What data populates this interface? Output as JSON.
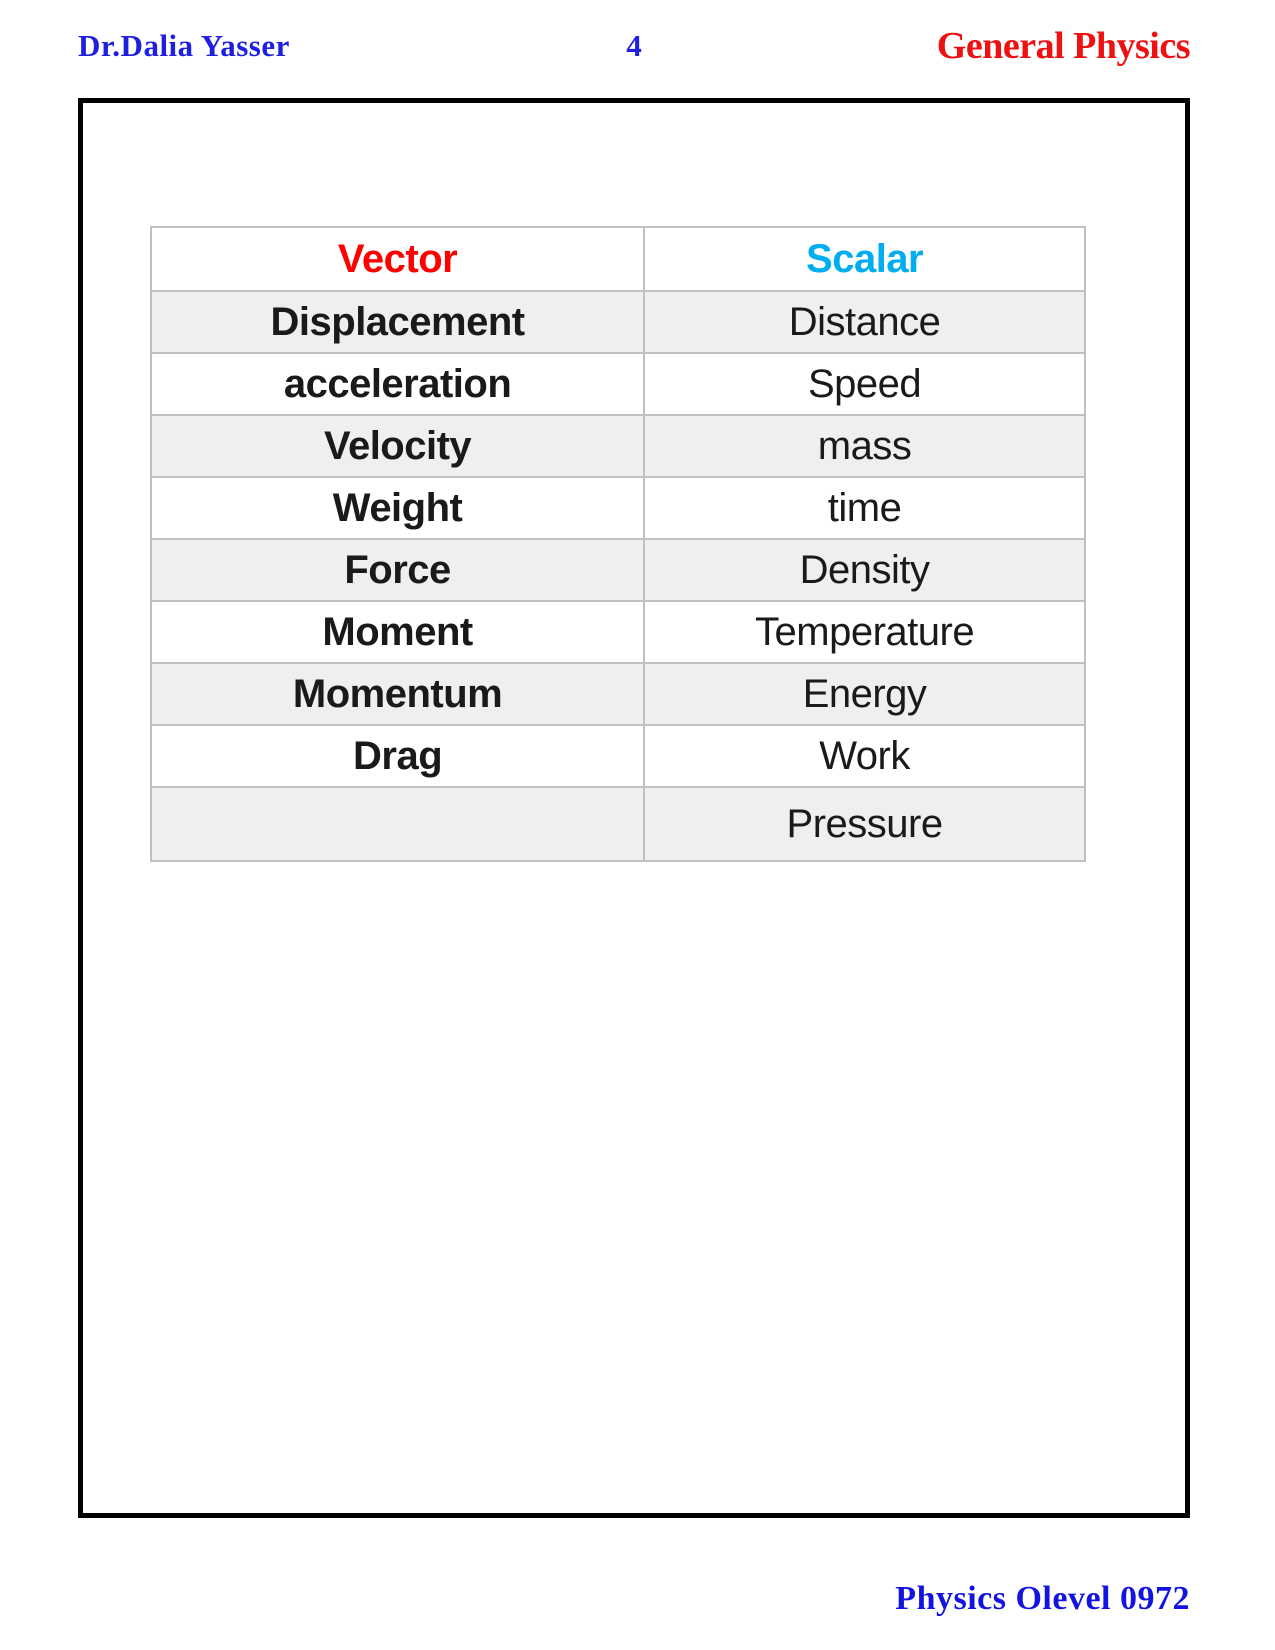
{
  "header": {
    "author": "Dr.Dalia Yasser",
    "page_number": "4",
    "title": "General Physics"
  },
  "footer": {
    "text": "Physics Olevel 0972"
  },
  "colors": {
    "header_blue": "#1f1fe0",
    "title_red": "#ee1111",
    "vector_red": "#ff0000",
    "scalar_cyan": "#00aeef",
    "stripe_gray": "#efefef",
    "table_border_gray": "#bfbfbf",
    "box_border_black": "#000000"
  },
  "table": {
    "header": {
      "vector_label": "Vector",
      "scalar_label": "Scalar"
    },
    "rows": [
      {
        "vector": "Displacement",
        "scalar": "Distance"
      },
      {
        "vector": "acceleration",
        "scalar": "Speed"
      },
      {
        "vector": "Velocity",
        "scalar": "mass"
      },
      {
        "vector": "Weight",
        "scalar": "time"
      },
      {
        "vector": "Force",
        "scalar": "Density"
      },
      {
        "vector": "Moment",
        "scalar": "Temperature"
      },
      {
        "vector": "Momentum",
        "scalar": "Energy"
      },
      {
        "vector": "Drag",
        "scalar": "Work"
      },
      {
        "vector": "",
        "scalar": "Pressure"
      }
    ]
  }
}
